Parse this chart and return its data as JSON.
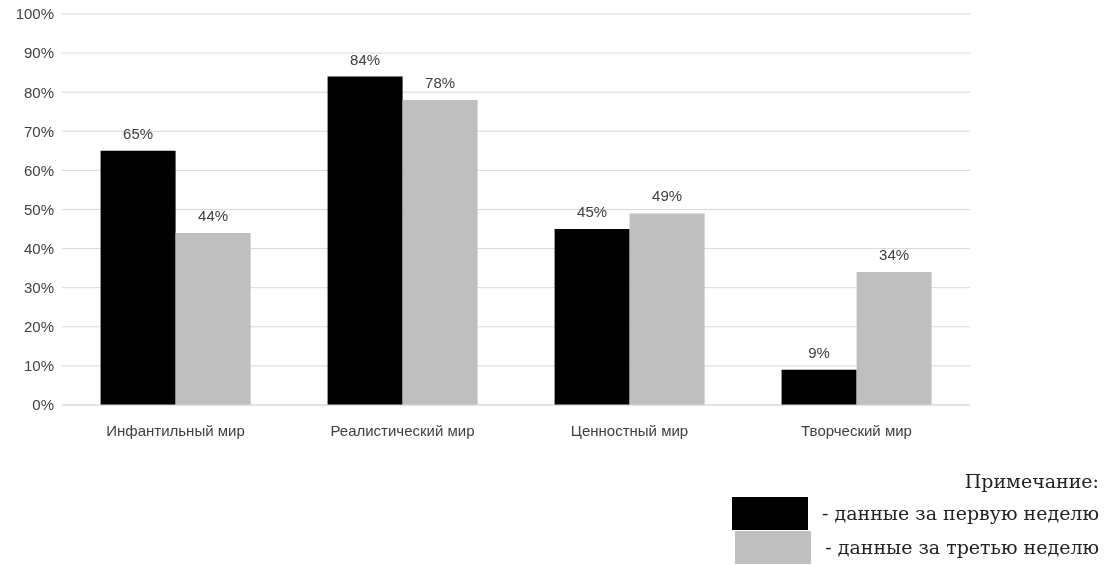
{
  "chart_data": {
    "type": "bar",
    "categories": [
      "Инфантильный мир",
      "Реалистический мир",
      "Ценностный мир",
      "Творческий мир"
    ],
    "series": [
      {
        "name": "- данные за первую неделю",
        "color": "#000000",
        "values": [
          65,
          84,
          45,
          9
        ],
        "value_labels": [
          "65%",
          "84%",
          "45%",
          "9%"
        ]
      },
      {
        "name": "- данные за третью неделю",
        "color": "#bfbfbf",
        "values": [
          44,
          78,
          49,
          34
        ],
        "value_labels": [
          "44%",
          "78%",
          "49%",
          "34%"
        ]
      }
    ],
    "ylim": [
      0,
      100
    ],
    "yticks": [
      {
        "value": 0,
        "label": "0%"
      },
      {
        "value": 10,
        "label": "10%"
      },
      {
        "value": 20,
        "label": "20%"
      },
      {
        "value": 30,
        "label": "30%"
      },
      {
        "value": 40,
        "label": "40%"
      },
      {
        "value": 50,
        "label": "50%"
      },
      {
        "value": 60,
        "label": "60%"
      },
      {
        "value": 70,
        "label": "70%"
      },
      {
        "value": 80,
        "label": "80%"
      },
      {
        "value": 90,
        "label": "90%"
      },
      {
        "value": 100,
        "label": "100%"
      }
    ],
    "grid": "y",
    "legend": "bottom right",
    "legend_title": "Примечание:"
  }
}
